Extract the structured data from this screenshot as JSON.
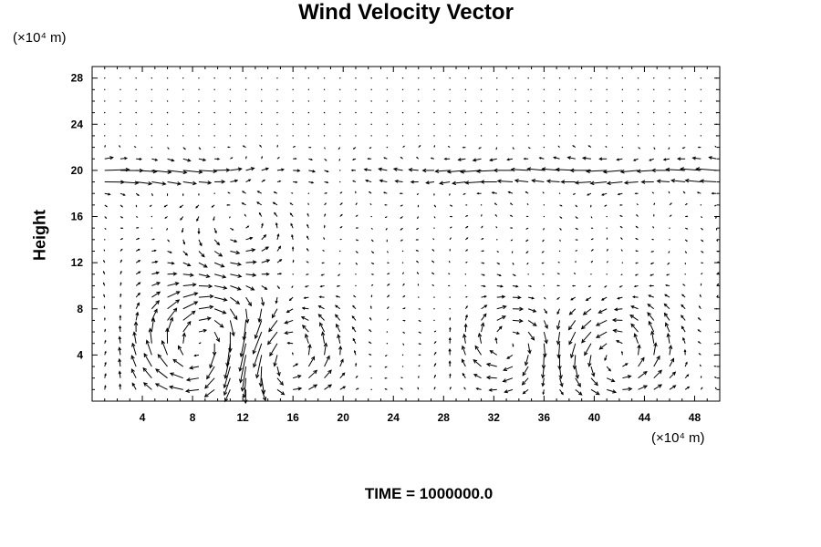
{
  "chart_data": {
    "type": "vector-field",
    "title": "Wind Velocity Vector",
    "ylabel": "Height",
    "xlabel": "",
    "x_unit": "(×10⁴ m)",
    "y_unit": "(×10⁴ m)",
    "xlim": [
      0,
      50
    ],
    "ylim": [
      0,
      29
    ],
    "x_ticks": [
      "4",
      "8",
      "12",
      "16",
      "20",
      "24",
      "28",
      "32",
      "36",
      "40",
      "44",
      "48"
    ],
    "y_ticks": [
      "4",
      "8",
      "12",
      "16",
      "20",
      "24",
      "28"
    ],
    "grid": false,
    "vectors_visible": true
  },
  "footer": {
    "time_text": "TIME = 1000000.0"
  }
}
